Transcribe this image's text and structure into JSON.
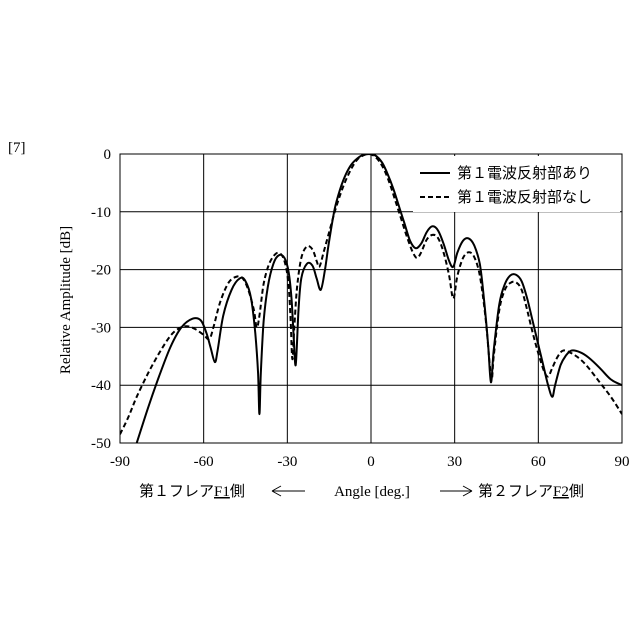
{
  "figure_label": "[7]",
  "chart_data": {
    "type": "line",
    "title": "",
    "ylabel": "Relative Amplitude [dB]",
    "xlabel": "Angle [deg.]",
    "xlabel_left": "第１フレア",
    "xlabel_left_ref": "F1",
    "xlabel_left_suffix": "側",
    "xlabel_right": "第２フレア",
    "xlabel_right_ref": "F2",
    "xlabel_right_suffix": "側",
    "xlim": [
      -90,
      90
    ],
    "ylim": [
      -50,
      0
    ],
    "xticks": [
      "-90",
      "-60",
      "-30",
      "0",
      "30",
      "60",
      "90"
    ],
    "yticks": [
      "0",
      "-10",
      "-20",
      "-30",
      "-40",
      "-50"
    ],
    "grid": true,
    "legend_position": "top-right",
    "series": [
      {
        "name": "第１電波反射部あり",
        "style": "solid",
        "points": [
          [
            -84,
            -50
          ],
          [
            -80,
            -44
          ],
          [
            -76,
            -38.5
          ],
          [
            -72,
            -33.5
          ],
          [
            -68,
            -30
          ],
          [
            -64,
            -28.5
          ],
          [
            -61,
            -28.8
          ],
          [
            -59,
            -31
          ],
          [
            -57.5,
            -33.5
          ],
          [
            -56,
            -36
          ],
          [
            -55,
            -34
          ],
          [
            -53,
            -28
          ],
          [
            -50,
            -23.5
          ],
          [
            -47,
            -21.5
          ],
          [
            -45,
            -22
          ],
          [
            -43,
            -25
          ],
          [
            -41.5,
            -31
          ],
          [
            -40.5,
            -38
          ],
          [
            -40,
            -45
          ],
          [
            -39.5,
            -38
          ],
          [
            -38.5,
            -29
          ],
          [
            -37,
            -23
          ],
          [
            -35,
            -19
          ],
          [
            -33,
            -17.5
          ],
          [
            -31,
            -18
          ],
          [
            -29.5,
            -20.5
          ],
          [
            -28.5,
            -25
          ],
          [
            -27.8,
            -31
          ],
          [
            -27,
            -36.5
          ],
          [
            -26,
            -27
          ],
          [
            -25,
            -21.5
          ],
          [
            -23,
            -19
          ],
          [
            -21,
            -19.3
          ],
          [
            -19.5,
            -21.5
          ],
          [
            -18,
            -23.5
          ],
          [
            -16.5,
            -20
          ],
          [
            -15,
            -15
          ],
          [
            -13,
            -9.5
          ],
          [
            -11,
            -6
          ],
          [
            -9,
            -3.5
          ],
          [
            -7,
            -1.8
          ],
          [
            -5,
            -0.8
          ],
          [
            -3,
            -0.2
          ],
          [
            0,
            0
          ],
          [
            2,
            -0.4
          ],
          [
            4,
            -1.5
          ],
          [
            6,
            -3.5
          ],
          [
            8,
            -6
          ],
          [
            10,
            -9
          ],
          [
            12,
            -12
          ],
          [
            14,
            -15
          ],
          [
            16,
            -16.3
          ],
          [
            18,
            -15.5
          ],
          [
            20,
            -13.5
          ],
          [
            22,
            -12.5
          ],
          [
            24,
            -13.2
          ],
          [
            26,
            -15.5
          ],
          [
            28,
            -18.5
          ],
          [
            29.5,
            -19.5
          ],
          [
            31,
            -17
          ],
          [
            33,
            -15
          ],
          [
            35,
            -14.6
          ],
          [
            37,
            -15.8
          ],
          [
            39,
            -19
          ],
          [
            40.5,
            -25
          ],
          [
            42,
            -33
          ],
          [
            43,
            -39.5
          ],
          [
            44,
            -34
          ],
          [
            46,
            -26
          ],
          [
            48,
            -22.5
          ],
          [
            50,
            -21
          ],
          [
            52,
            -20.9
          ],
          [
            54,
            -22
          ],
          [
            56,
            -25
          ],
          [
            58,
            -29
          ],
          [
            60,
            -33
          ],
          [
            62,
            -37
          ],
          [
            63.5,
            -40
          ],
          [
            65,
            -42
          ],
          [
            66,
            -40
          ],
          [
            68,
            -36.5
          ],
          [
            70,
            -34.8
          ],
          [
            72,
            -34
          ],
          [
            75,
            -34.3
          ],
          [
            78,
            -35.2
          ],
          [
            82,
            -37
          ],
          [
            86,
            -39
          ],
          [
            90,
            -40
          ]
        ]
      },
      {
        "name": "第１電波反射部なし",
        "style": "dashed",
        "points": [
          [
            -90,
            -48.5
          ],
          [
            -87,
            -45.5
          ],
          [
            -84,
            -42
          ],
          [
            -80,
            -38
          ],
          [
            -76,
            -34.5
          ],
          [
            -72,
            -31.5
          ],
          [
            -69,
            -30.2
          ],
          [
            -66,
            -29.8
          ],
          [
            -63,
            -30.3
          ],
          [
            -60,
            -31.3
          ],
          [
            -58,
            -32
          ],
          [
            -56.5,
            -30
          ],
          [
            -54,
            -25.5
          ],
          [
            -51,
            -22.2
          ],
          [
            -48,
            -21.2
          ],
          [
            -46,
            -21.5
          ],
          [
            -44,
            -23.5
          ],
          [
            -42,
            -27
          ],
          [
            -41,
            -30
          ],
          [
            -40,
            -28
          ],
          [
            -38.5,
            -22.5
          ],
          [
            -36.5,
            -19
          ],
          [
            -34,
            -17.2
          ],
          [
            -32,
            -17.5
          ],
          [
            -30.5,
            -19.5
          ],
          [
            -29.5,
            -23
          ],
          [
            -28.8,
            -29
          ],
          [
            -28.2,
            -35.5
          ],
          [
            -27.5,
            -30
          ],
          [
            -26.5,
            -23
          ],
          [
            -25,
            -18
          ],
          [
            -23,
            -16
          ],
          [
            -21,
            -16.5
          ],
          [
            -19.5,
            -18.5
          ],
          [
            -18.5,
            -19.5
          ],
          [
            -17,
            -17
          ],
          [
            -15,
            -13.5
          ],
          [
            -13,
            -10
          ],
          [
            -11,
            -7
          ],
          [
            -9,
            -4.5
          ],
          [
            -7,
            -2.5
          ],
          [
            -5,
            -1
          ],
          [
            -3,
            -0.3
          ],
          [
            -1,
            0
          ],
          [
            1,
            -0.3
          ],
          [
            3,
            -1.3
          ],
          [
            5,
            -3
          ],
          [
            7,
            -5.5
          ],
          [
            9,
            -8.5
          ],
          [
            11,
            -11.5
          ],
          [
            13,
            -14.5
          ],
          [
            15,
            -17
          ],
          [
            16.5,
            -18
          ],
          [
            18,
            -17
          ],
          [
            20,
            -14.8
          ],
          [
            22,
            -14
          ],
          [
            24,
            -14.5
          ],
          [
            26,
            -17
          ],
          [
            28,
            -21
          ],
          [
            29.5,
            -25
          ],
          [
            31,
            -21
          ],
          [
            33,
            -18
          ],
          [
            35,
            -17
          ],
          [
            37,
            -17.8
          ],
          [
            39,
            -21
          ],
          [
            41,
            -28
          ],
          [
            42.5,
            -36
          ],
          [
            43.3,
            -39
          ],
          [
            44,
            -35
          ],
          [
            46,
            -27
          ],
          [
            48,
            -23.5
          ],
          [
            50,
            -22.3
          ],
          [
            52,
            -22.2
          ],
          [
            54,
            -23.5
          ],
          [
            56,
            -27
          ],
          [
            58,
            -31
          ],
          [
            60,
            -34.5
          ],
          [
            62,
            -37.5
          ],
          [
            63.5,
            -38.5
          ],
          [
            65,
            -37
          ],
          [
            67,
            -35
          ],
          [
            69,
            -34
          ],
          [
            72,
            -34.5
          ],
          [
            75,
            -35.5
          ],
          [
            78,
            -37
          ],
          [
            82,
            -39.5
          ],
          [
            86,
            -42
          ],
          [
            90,
            -45
          ]
        ]
      }
    ]
  }
}
